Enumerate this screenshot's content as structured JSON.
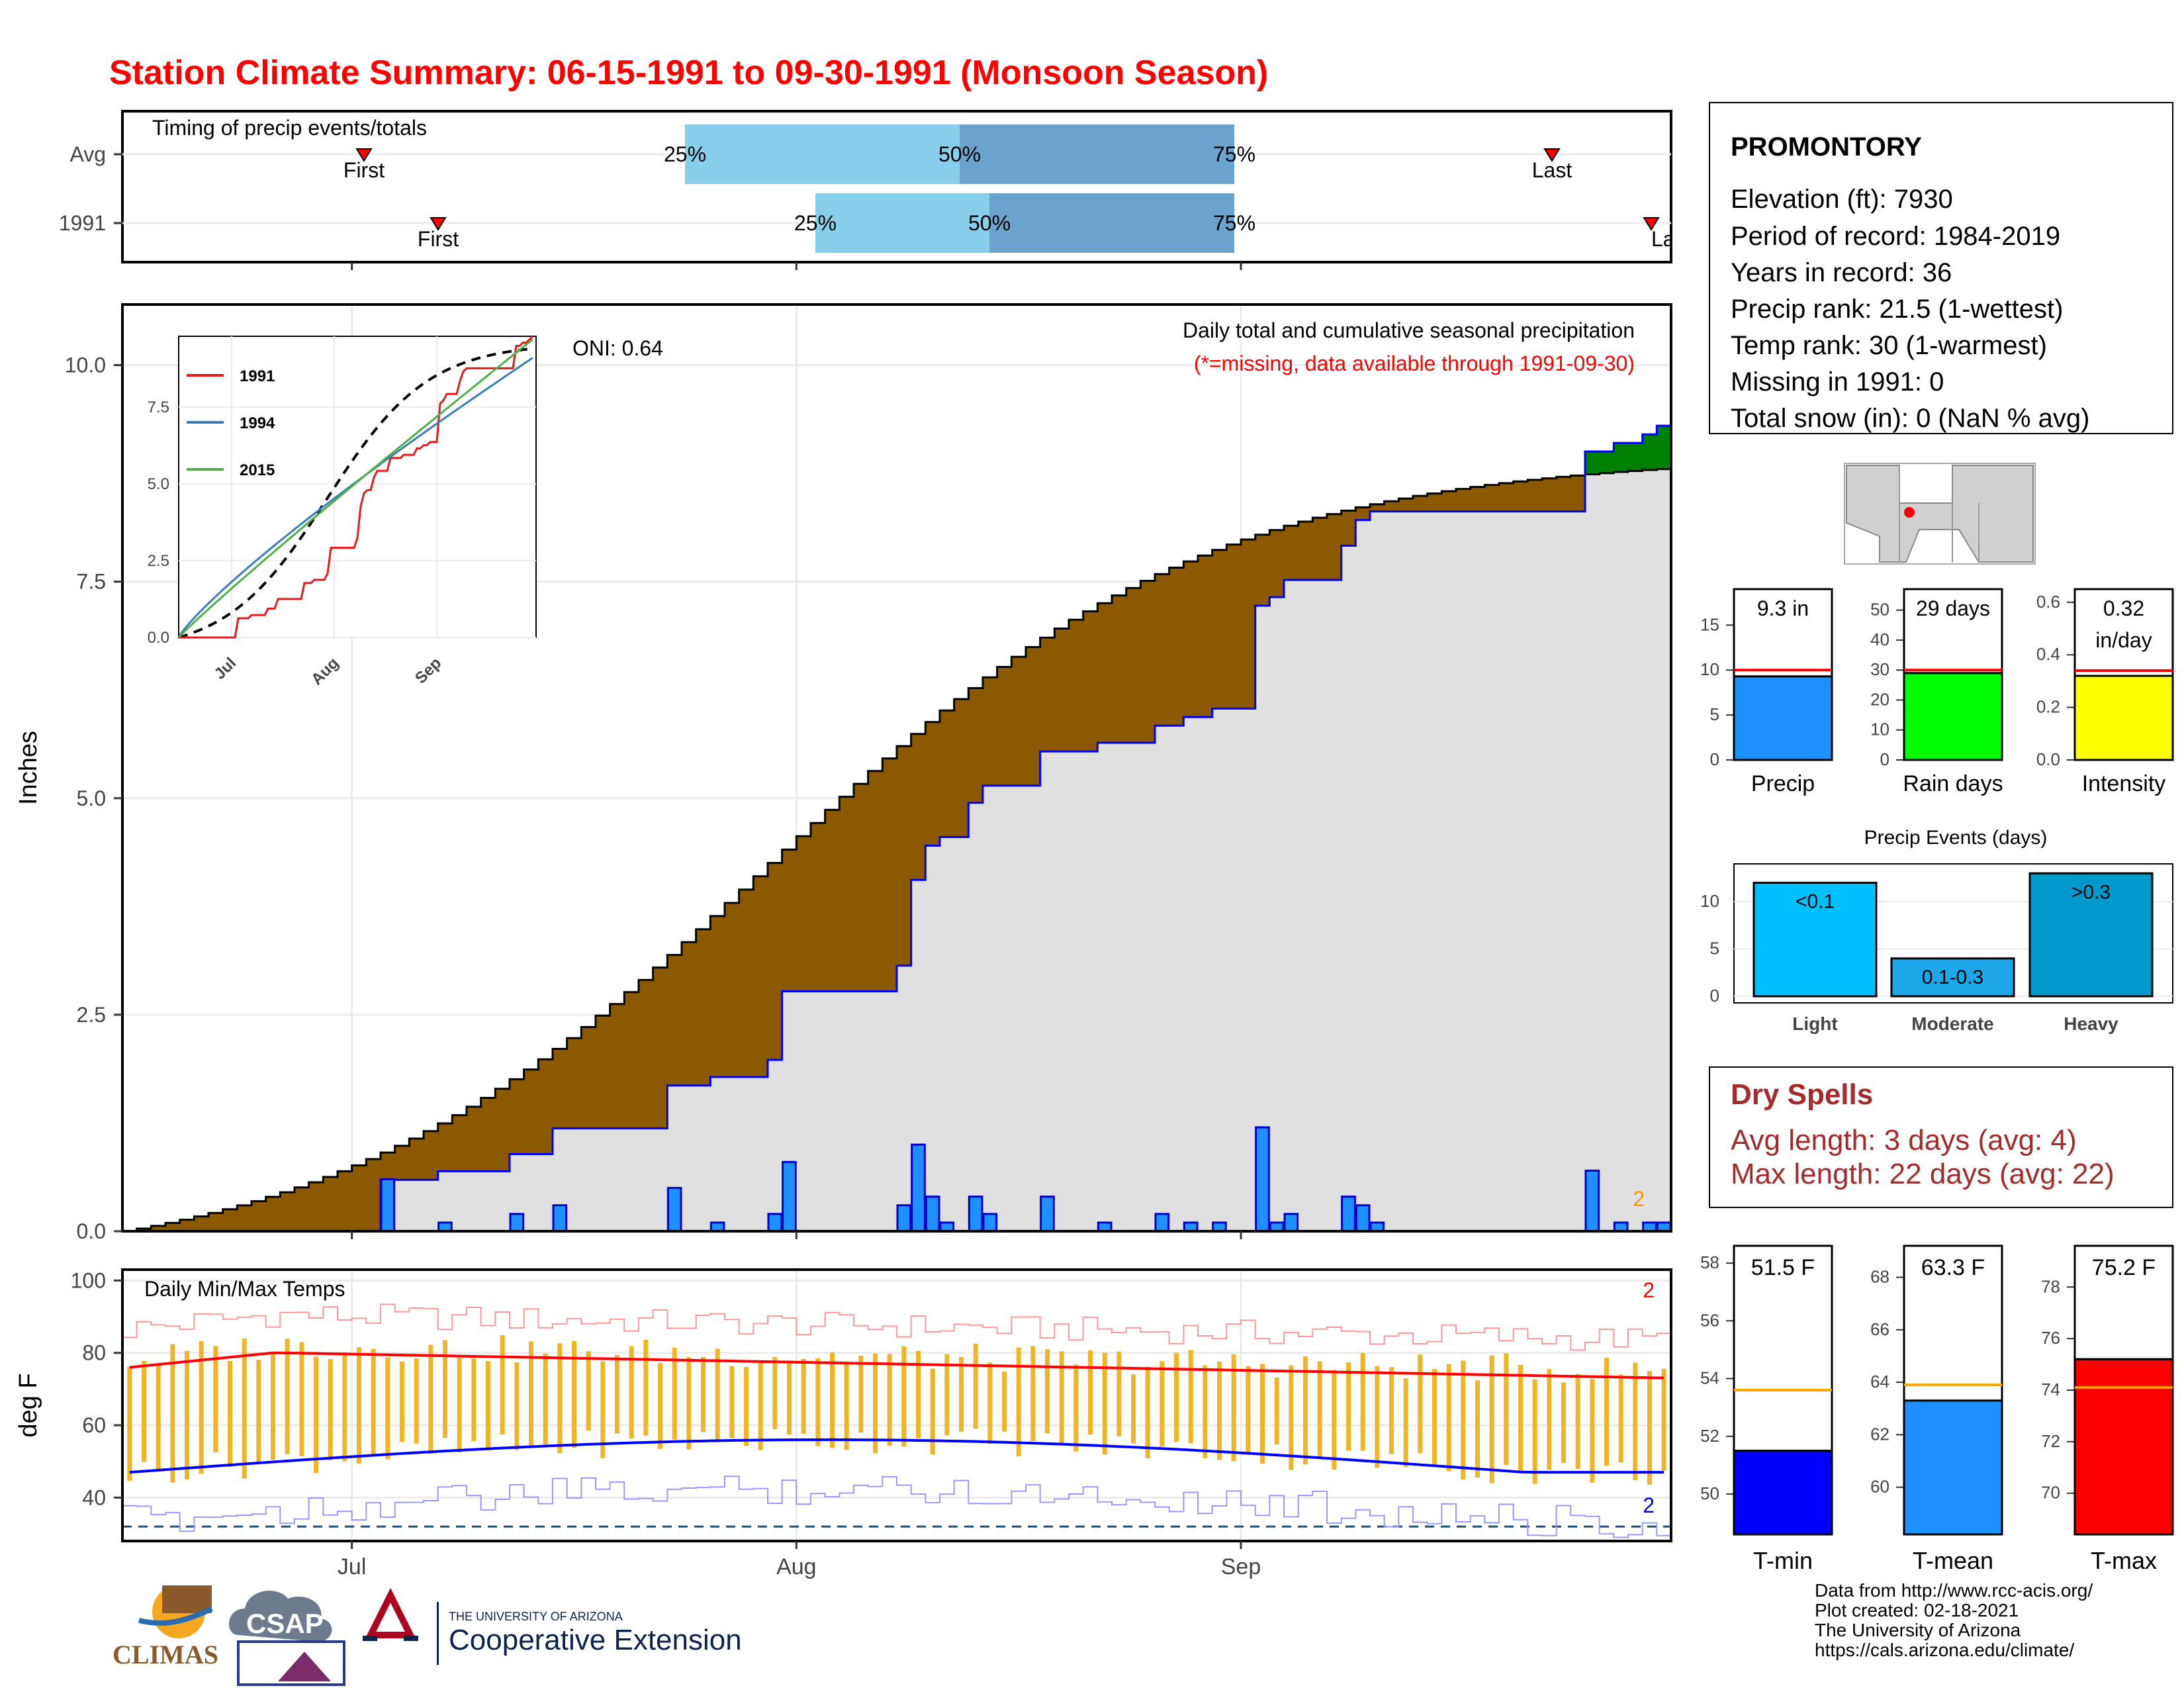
{
  "title": "Station Climate Summary: 06-15-1991 to 09-30-1991 (Monsoon Season)",
  "timing": {
    "label": "Timing of precip events/totals",
    "rows": [
      {
        "name": "Avg",
        "first": "First",
        "last": "Last",
        "p25": "25%",
        "p50": "50%",
        "p75": "75%"
      },
      {
        "name": "1991",
        "first": "First",
        "last": "Last",
        "p25": "25%",
        "p50": "50%",
        "p75": "75%"
      }
    ]
  },
  "station": {
    "name": "PROMONTORY",
    "elevation": "Elevation (ft): 7930",
    "period": "Period of record: 1984-2019",
    "years": "Years in record: 36",
    "precip_rank": "Precip rank: 21.5 (1-wettest)",
    "temp_rank": "Temp rank: 30 (1-warmest)",
    "missing": "Missing in 1991: 0",
    "snow": "Total snow (in): 0 (NaN % avg)"
  },
  "main_panel": {
    "ylabel": "Inches",
    "legend_title": "Daily total and cumulative seasonal precipitation",
    "legend_sub": "(*=missing, data available through 1991-09-30)",
    "oni": "ONI: 0.64",
    "corner_count": "2",
    "yticks": [
      "0.0",
      "2.5",
      "5.0",
      "7.5",
      "10.0"
    ]
  },
  "temp_panel": {
    "ylabel": "deg F",
    "label": "Daily Min/Max Temps",
    "corner_max": "2",
    "corner_min": "2",
    "yticks": [
      "40",
      "60",
      "80",
      "100"
    ],
    "xticks": [
      "Jul",
      "Aug",
      "Sep"
    ]
  },
  "inset": {
    "series": [
      "1991",
      "1994",
      "2015"
    ],
    "colors": [
      "#e41a1c",
      "#377eb8",
      "#4daf4a"
    ],
    "yticks": [
      "0.0",
      "2.5",
      "5.0",
      "7.5"
    ],
    "xticks": [
      "Jul",
      "Aug",
      "Sep"
    ]
  },
  "summary_bars": [
    {
      "label": "Precip",
      "value_text": "9.3 in",
      "value": 9.3,
      "avg": 10.0,
      "ymax": 19,
      "yticks": [
        "0",
        "5",
        "10",
        "15"
      ],
      "color": "#1e90ff"
    },
    {
      "label": "Rain days",
      "value_text": "29 days",
      "value": 29,
      "avg": 30,
      "ymax": 57,
      "yticks": [
        "0",
        "10",
        "20",
        "30",
        "40",
        "50"
      ],
      "color": "#00ff00"
    },
    {
      "label": "Intensity",
      "value_text": "0.32 in/day",
      "value_line1": "0.32",
      "value_line2": "in/day",
      "value": 0.32,
      "avg": 0.34,
      "ymax": 0.65,
      "yticks": [
        "0.0",
        "0.2",
        "0.4",
        "0.6"
      ],
      "color": "#ffff00"
    }
  ],
  "events": {
    "title": "Precip Events (days)",
    "yticks": [
      "0",
      "5",
      "10"
    ],
    "bars": [
      {
        "label": "Light",
        "inner": "<0.1",
        "value": 12,
        "color": "#00bfff"
      },
      {
        "label": "Moderate",
        "inner": "0.1-0.3",
        "value": 4,
        "color": "#1ea7e8"
      },
      {
        "label": "Heavy",
        "inner": ">0.3",
        "value": 13,
        "color": "#0099cc"
      }
    ]
  },
  "dry_spells": {
    "title": "Dry Spells",
    "avg": "Avg length: 3 days (avg: 4)",
    "max": "Max length: 22 days (avg: 22)"
  },
  "temp_bars": [
    {
      "label": "T-min",
      "value_text": "51.5 F",
      "value": 51.5,
      "avg": 53.6,
      "ymin": 48.6,
      "ymax": 58.6,
      "yticks": [
        "50",
        "52",
        "54",
        "56",
        "58"
      ],
      "color": "#0000ff"
    },
    {
      "label": "T-mean",
      "value_text": "63.3 F",
      "value": 63.3,
      "avg": 63.9,
      "ymin": 58.2,
      "ymax": 69.2,
      "yticks": [
        "60",
        "62",
        "64",
        "66",
        "68"
      ],
      "color": "#1e90ff"
    },
    {
      "label": "T-max",
      "value_text": "75.2 F",
      "value": 75.2,
      "avg": 74.1,
      "ymin": 68.4,
      "ymax": 79.6,
      "yticks": [
        "70",
        "72",
        "74",
        "76",
        "78"
      ],
      "color": "#ff0000"
    }
  ],
  "credits": [
    "Data from http://www.rcc-acis.org/",
    "Plot created: 02-18-2021",
    "The University of Arizona",
    "https://cals.arizona.edu/climate/"
  ],
  "logos": {
    "climas": "CLIMAS",
    "csap": "CSAP",
    "ua_small": "THE UNIVERSITY OF ARIZONA",
    "ua_big": "Cooperative Extension"
  },
  "chart_data": {
    "type": "area",
    "x_start": "1991-06-15",
    "x_end": "1991-09-30",
    "ylim": [
      0,
      10.0
    ],
    "daily_precip_1991": [
      {
        "date": "1991-07-03",
        "value": 0.6
      },
      {
        "date": "1991-07-07",
        "value": 0.1
      },
      {
        "date": "1991-07-12",
        "value": 0.2
      },
      {
        "date": "1991-07-15",
        "value": 0.3
      },
      {
        "date": "1991-07-23",
        "value": 0.5
      },
      {
        "date": "1991-07-26",
        "value": 0.1
      },
      {
        "date": "1991-07-30",
        "value": 0.2
      },
      {
        "date": "1991-07-31",
        "value": 0.8
      },
      {
        "date": "1991-08-08",
        "value": 0.3
      },
      {
        "date": "1991-08-09",
        "value": 1.0
      },
      {
        "date": "1991-08-10",
        "value": 0.4
      },
      {
        "date": "1991-08-11",
        "value": 0.1
      },
      {
        "date": "1991-08-13",
        "value": 0.4
      },
      {
        "date": "1991-08-14",
        "value": 0.2
      },
      {
        "date": "1991-08-18",
        "value": 0.4
      },
      {
        "date": "1991-08-22",
        "value": 0.1
      },
      {
        "date": "1991-08-26",
        "value": 0.2
      },
      {
        "date": "1991-08-28",
        "value": 0.1
      },
      {
        "date": "1991-08-30",
        "value": 0.1
      },
      {
        "date": "1991-09-02",
        "value": 1.2
      },
      {
        "date": "1991-09-03",
        "value": 0.1
      },
      {
        "date": "1991-09-04",
        "value": 0.2
      },
      {
        "date": "1991-09-08",
        "value": 0.4
      },
      {
        "date": "1991-09-09",
        "value": 0.3
      },
      {
        "date": "1991-09-10",
        "value": 0.1
      },
      {
        "date": "1991-09-25",
        "value": 0.7
      },
      {
        "date": "1991-09-27",
        "value": 0.1
      },
      {
        "date": "1991-09-29",
        "value": 0.1
      },
      {
        "date": "1991-09-30",
        "value": 0.1
      }
    ],
    "cumulative_avg_endpoint": 8.8,
    "cumulative_1991_endpoint": 9.3,
    "temps": {
      "avg_max_range": [
        73,
        80
      ],
      "avg_min_range": [
        47,
        56
      ]
    }
  }
}
